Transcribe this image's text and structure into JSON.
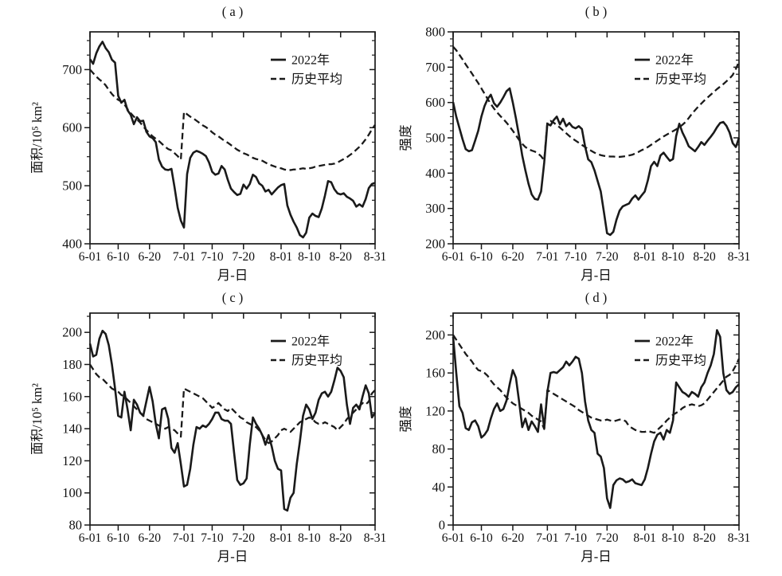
{
  "figure": {
    "background": "#ffffff",
    "line_color": "#1a1a1a",
    "x_axis": {
      "label": "月-日",
      "tick_labels": [
        "6-01",
        "6-10",
        "6-20",
        "7-01",
        "7-10",
        "7-20",
        "8-01",
        "8-10",
        "8-20",
        "8-31"
      ],
      "tick_days": [
        0,
        9,
        19,
        30,
        39,
        49,
        61,
        70,
        80,
        91
      ],
      "n_days": 92
    },
    "legend": {
      "series1": "2022年",
      "series2": "历史平均"
    }
  },
  "chart_data": [
    {
      "id": "a",
      "type": "line",
      "title": "( a )",
      "ylabel": "面积/10⁵ km²",
      "xlabel": "月-日",
      "ylim": [
        400,
        765
      ],
      "yticks": [
        400,
        500,
        600,
        700
      ],
      "y_minor_step": 25,
      "legend_position": "upper-right",
      "series": [
        {
          "name": "2022年",
          "style": "solid",
          "values": [
            718,
            710,
            728,
            740,
            748,
            737,
            730,
            717,
            712,
            655,
            643,
            648,
            630,
            622,
            606,
            618,
            611,
            612,
            593,
            585,
            582,
            575,
            545,
            533,
            528,
            527,
            529,
            497,
            462,
            440,
            428,
            520,
            548,
            557,
            560,
            558,
            555,
            551,
            540,
            524,
            519,
            521,
            534,
            528,
            510,
            495,
            489,
            484,
            486,
            502,
            495,
            503,
            519,
            515,
            504,
            500,
            490,
            493,
            485,
            491,
            497,
            501,
            503,
            466,
            450,
            438,
            428,
            415,
            411,
            419,
            445,
            452,
            448,
            446,
            461,
            483,
            508,
            506,
            494,
            487,
            485,
            487,
            481,
            478,
            474,
            464,
            468,
            464,
            477,
            496,
            503,
            505
          ]
        },
        {
          "name": "历史平均",
          "style": "dashed",
          "values": [
            700,
            694,
            688,
            683,
            679,
            673,
            665,
            658,
            652,
            648,
            645,
            640,
            632,
            625,
            619,
            614,
            609,
            602,
            596,
            590,
            585,
            581,
            577,
            572,
            567,
            563,
            561,
            556,
            551,
            545,
            627,
            623,
            619,
            616,
            612,
            608,
            604,
            601,
            597,
            592,
            588,
            585,
            581,
            577,
            574,
            570,
            566,
            562,
            559,
            556,
            554,
            551,
            548,
            546,
            545,
            543,
            540,
            537,
            535,
            533,
            531,
            530,
            528,
            527,
            527,
            528,
            528,
            529,
            530,
            529,
            530,
            531,
            533,
            534,
            535,
            536,
            537,
            537,
            538,
            540,
            543,
            546,
            549,
            553,
            557,
            562,
            567,
            573,
            580,
            588,
            597,
            605
          ]
        }
      ]
    },
    {
      "id": "b",
      "type": "line",
      "title": "( b )",
      "ylabel": "强度",
      "xlabel": "月-日",
      "ylim": [
        200,
        800
      ],
      "yticks": [
        200,
        300,
        400,
        500,
        600,
        700,
        800
      ],
      "y_minor_step": 20,
      "legend_position": "upper-right",
      "series": [
        {
          "name": "2022年",
          "style": "solid",
          "values": [
            601,
            560,
            528,
            496,
            468,
            462,
            465,
            492,
            520,
            560,
            590,
            610,
            622,
            598,
            588,
            600,
            615,
            632,
            640,
            600,
            555,
            505,
            450,
            408,
            370,
            340,
            327,
            325,
            348,
            430,
            540,
            535,
            550,
            560,
            538,
            554,
            533,
            542,
            531,
            527,
            533,
            525,
            476,
            439,
            431,
            408,
            378,
            348,
            290,
            230,
            225,
            234,
            268,
            294,
            306,
            310,
            314,
            328,
            337,
            325,
            337,
            348,
            380,
            420,
            432,
            420,
            450,
            458,
            446,
            435,
            440,
            505,
            540,
            515,
            497,
            476,
            469,
            462,
            474,
            488,
            480,
            492,
            503,
            515,
            530,
            542,
            545,
            534,
            515,
            485,
            474,
            500
          ]
        },
        {
          "name": "历史平均",
          "style": "dashed",
          "values": [
            758,
            748,
            735,
            722,
            708,
            695,
            682,
            668,
            655,
            640,
            625,
            610,
            596,
            583,
            572,
            562,
            553,
            543,
            532,
            520,
            507,
            494,
            483,
            474,
            468,
            464,
            461,
            456,
            448,
            436,
            545,
            548,
            543,
            536,
            529,
            521,
            513,
            505,
            498,
            492,
            486,
            480,
            474,
            468,
            463,
            458,
            454,
            451,
            449,
            448,
            447,
            447,
            446,
            446,
            447,
            448,
            450,
            452,
            456,
            460,
            465,
            469,
            474,
            480,
            486,
            492,
            498,
            504,
            509,
            514,
            519,
            524,
            530,
            537,
            545,
            556,
            568,
            578,
            588,
            597,
            606,
            614,
            622,
            630,
            638,
            645,
            652,
            660,
            668,
            678,
            695,
            716
          ]
        }
      ]
    },
    {
      "id": "c",
      "type": "line",
      "title": "( c )",
      "ylabel": "面积/10⁵ km²",
      "xlabel": "月-日",
      "ylim": [
        80,
        212
      ],
      "yticks": [
        80,
        100,
        120,
        140,
        160,
        180,
        200
      ],
      "y_minor_step": 10,
      "legend_position": "upper-right",
      "series": [
        {
          "name": "2022年",
          "style": "solid",
          "values": [
            193,
            185,
            186,
            196,
            201,
            199,
            192,
            180,
            165,
            148,
            147,
            163,
            152,
            139,
            158,
            155,
            150,
            148,
            157,
            166,
            157,
            143,
            134,
            152,
            153,
            146,
            128,
            125,
            131,
            118,
            104,
            105,
            115,
            130,
            141,
            140,
            142,
            141,
            143,
            146,
            150,
            150,
            146,
            145,
            145,
            143,
            125,
            108,
            105,
            106,
            109,
            130,
            147,
            143,
            140,
            136,
            130,
            136,
            129,
            120,
            115,
            114,
            90,
            89,
            97,
            100,
            118,
            132,
            148,
            155,
            152,
            146,
            150,
            158,
            162,
            163,
            160,
            163,
            170,
            178,
            176,
            172,
            155,
            143,
            153,
            155,
            152,
            160,
            167,
            162,
            147,
            150
          ]
        },
        {
          "name": "历史平均",
          "style": "dashed",
          "values": [
            180,
            177,
            174,
            172,
            171,
            169,
            167,
            165,
            164,
            163,
            161,
            160,
            158,
            156,
            154,
            152,
            150,
            148,
            146,
            145,
            144,
            143,
            142,
            141,
            140,
            141,
            140,
            139,
            137,
            135,
            165,
            164,
            163,
            162,
            161,
            160,
            159,
            157,
            155,
            153,
            154,
            156,
            154,
            152,
            151,
            153,
            151,
            149,
            147,
            146,
            144,
            143,
            142,
            141,
            139,
            136,
            133,
            131,
            132,
            134,
            136,
            139,
            140,
            139,
            138,
            140,
            142,
            144,
            145,
            146,
            147,
            146,
            144,
            143,
            143,
            144,
            143,
            142,
            141,
            139,
            141,
            143,
            146,
            148,
            150,
            152,
            154,
            156,
            155,
            157,
            162,
            164
          ]
        }
      ]
    },
    {
      "id": "d",
      "type": "line",
      "title": "( d )",
      "ylabel": "强度",
      "xlabel": "月-日",
      "ylim": [
        0,
        223
      ],
      "yticks": [
        0,
        40,
        80,
        120,
        160,
        200
      ],
      "y_minor_step": 10,
      "legend_position": "upper-right",
      "series": [
        {
          "name": "2022年",
          "style": "solid",
          "values": [
            198,
            160,
            125,
            118,
            102,
            100,
            108,
            110,
            104,
            92,
            95,
            100,
            112,
            122,
            128,
            120,
            122,
            131,
            148,
            163,
            155,
            130,
            103,
            112,
            100,
            109,
            104,
            98,
            127,
            102,
            140,
            160,
            161,
            160,
            163,
            166,
            172,
            168,
            172,
            177,
            175,
            160,
            130,
            110,
            100,
            97,
            75,
            72,
            60,
            28,
            18,
            42,
            47,
            49,
            48,
            45,
            46,
            48,
            44,
            43,
            42,
            48,
            60,
            75,
            88,
            95,
            97,
            90,
            100,
            97,
            110,
            150,
            145,
            140,
            138,
            135,
            140,
            138,
            135,
            145,
            150,
            160,
            168,
            180,
            205,
            198,
            160,
            142,
            138,
            140,
            145,
            148
          ]
        },
        {
          "name": "历史平均",
          "style": "dashed",
          "values": [
            200,
            195,
            190,
            185,
            180,
            176,
            172,
            167,
            163,
            162,
            160,
            157,
            152,
            148,
            145,
            142,
            138,
            134,
            131,
            128,
            126,
            124,
            122,
            120,
            118,
            115,
            113,
            111,
            109,
            101,
            142,
            140,
            138,
            136,
            134,
            132,
            130,
            128,
            126,
            124,
            121,
            119,
            117,
            115,
            113,
            112,
            111,
            110,
            110,
            111,
            110,
            109,
            110,
            111,
            111,
            109,
            104,
            102,
            100,
            99,
            98,
            98,
            99,
            98,
            97,
            100,
            103,
            106,
            110,
            113,
            116,
            118,
            120,
            123,
            125,
            126,
            127,
            126,
            125,
            126,
            128,
            132,
            136,
            140,
            144,
            148,
            152,
            156,
            158,
            162,
            168,
            175
          ]
        }
      ]
    }
  ]
}
